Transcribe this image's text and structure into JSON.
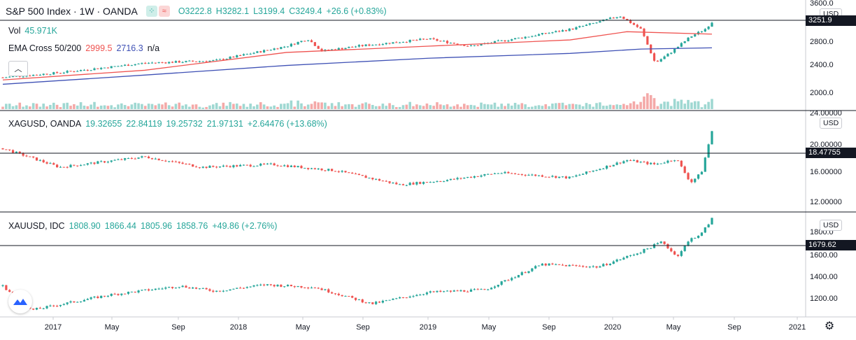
{
  "colors": {
    "up": "#26a69a",
    "down": "#ef5350",
    "ema_fast": "#ef5350",
    "ema_slow": "#3f51b5",
    "text": "#131722",
    "line": "#131722"
  },
  "top_pane": {
    "title": "S&P 500 Index · 1W · OANDA",
    "ohlc": {
      "o": "O3222.8",
      "h": "H3282.1",
      "l": "L3199.4",
      "c": "C3249.4",
      "chg": "+26.6 (+0.83%)"
    },
    "vol_label": "Vol",
    "vol_value": "45.971K",
    "ema_label": "EMA Cross 50/200",
    "ema_fast": "2999.5",
    "ema_slow": "2716.3",
    "ema_na": "n/a",
    "currency": "USD",
    "last_price": "3251.9",
    "collapse_icon": "chevron-up-icon",
    "toggle_icons": [
      "dots-icon",
      "approx-icon"
    ]
  },
  "mid_pane": {
    "title": "XAGUSD, OANDA",
    "ohlc": {
      "o": "19.32655",
      "h": "22.84119",
      "l": "19.25732",
      "c": "21.97131",
      "chg": "+2.64476 (+13.68%)"
    },
    "currency": "USD",
    "last_price": "18.47755"
  },
  "bottom_pane": {
    "title": "XAUUSD, IDC",
    "ohlc": {
      "o": "1808.90",
      "h": "1866.44",
      "l": "1805.96",
      "c": "1858.76",
      "chg": "+49.86 (+2.76%)"
    },
    "currency": "USD",
    "last_price": "1679.62"
  },
  "x_axis": {
    "ticks": [
      "2017",
      "May",
      "Sep",
      "2018",
      "May",
      "Sep",
      "2019",
      "May",
      "Sep",
      "2020",
      "May",
      "Sep",
      "2021"
    ]
  },
  "settings_icon": "gear-icon",
  "logo_icon": "tradingview-logo-icon",
  "chart_data": [
    {
      "type": "candlestick",
      "name": "S&P 500 Index",
      "interval": "1W",
      "y_ticks": [
        "3600.0",
        "2800.0",
        "2400.0",
        "2000.0"
      ],
      "ylim": [
        1850,
        3650
      ],
      "anchors": [
        [
          0,
          2100
        ],
        [
          0.08,
          2200
        ],
        [
          0.2,
          2400
        ],
        [
          0.3,
          2450
        ],
        [
          0.35,
          2600
        ],
        [
          0.4,
          2750
        ],
        [
          0.43,
          2900
        ],
        [
          0.45,
          2650
        ],
        [
          0.5,
          2750
        ],
        [
          0.6,
          2900
        ],
        [
          0.66,
          2750
        ],
        [
          0.72,
          2900
        ],
        [
          0.8,
          3100
        ],
        [
          0.84,
          3250
        ],
        [
          0.87,
          3380
        ],
        [
          0.9,
          3100
        ],
        [
          0.92,
          2400
        ],
        [
          0.94,
          2600
        ],
        [
          0.97,
          2950
        ],
        [
          0.99,
          3100
        ],
        [
          1,
          3250
        ]
      ],
      "ema_fast": [
        [
          0,
          2050
        ],
        [
          0.2,
          2250
        ],
        [
          0.4,
          2620
        ],
        [
          0.6,
          2750
        ],
        [
          0.8,
          2880
        ],
        [
          0.88,
          3050
        ],
        [
          1,
          3000
        ]
      ],
      "ema_slow": [
        [
          0,
          1960
        ],
        [
          0.2,
          2150
        ],
        [
          0.4,
          2350
        ],
        [
          0.6,
          2500
        ],
        [
          0.8,
          2600
        ],
        [
          0.9,
          2690
        ],
        [
          1,
          2716
        ]
      ],
      "volume_note": "volume histogram"
    },
    {
      "type": "candlestick",
      "name": "XAGUSD",
      "y_ticks": [
        "24.00000",
        "20.00000",
        "16.00000",
        "12.00000"
      ],
      "ylim": [
        11,
        24.5
      ],
      "anchors": [
        [
          0,
          19.5
        ],
        [
          0.08,
          16.8
        ],
        [
          0.2,
          18.3
        ],
        [
          0.28,
          16.8
        ],
        [
          0.38,
          17.2
        ],
        [
          0.47,
          16.3
        ],
        [
          0.56,
          14.3
        ],
        [
          0.63,
          15.0
        ],
        [
          0.7,
          16.0
        ],
        [
          0.8,
          15.3
        ],
        [
          0.88,
          17.8
        ],
        [
          0.92,
          17.2
        ],
        [
          0.95,
          18.0
        ],
        [
          0.97,
          14.6
        ],
        [
          0.985,
          16.0
        ],
        [
          1,
          21.97
        ]
      ]
    },
    {
      "type": "candlestick",
      "name": "XAUUSD",
      "y_ticks": [
        "1800.0",
        "1600.00",
        "1400.00",
        "1200.00"
      ],
      "ylim": [
        1120,
        1890
      ],
      "anchors": [
        [
          0,
          1330
        ],
        [
          0.04,
          1140
        ],
        [
          0.15,
          1260
        ],
        [
          0.25,
          1330
        ],
        [
          0.3,
          1290
        ],
        [
          0.37,
          1340
        ],
        [
          0.44,
          1320
        ],
        [
          0.52,
          1190
        ],
        [
          0.6,
          1280
        ],
        [
          0.68,
          1300
        ],
        [
          0.76,
          1500
        ],
        [
          0.84,
          1480
        ],
        [
          0.9,
          1600
        ],
        [
          0.93,
          1680
        ],
        [
          0.95,
          1560
        ],
        [
          0.97,
          1700
        ],
        [
          0.985,
          1740
        ],
        [
          1,
          1858.76
        ]
      ]
    }
  ]
}
